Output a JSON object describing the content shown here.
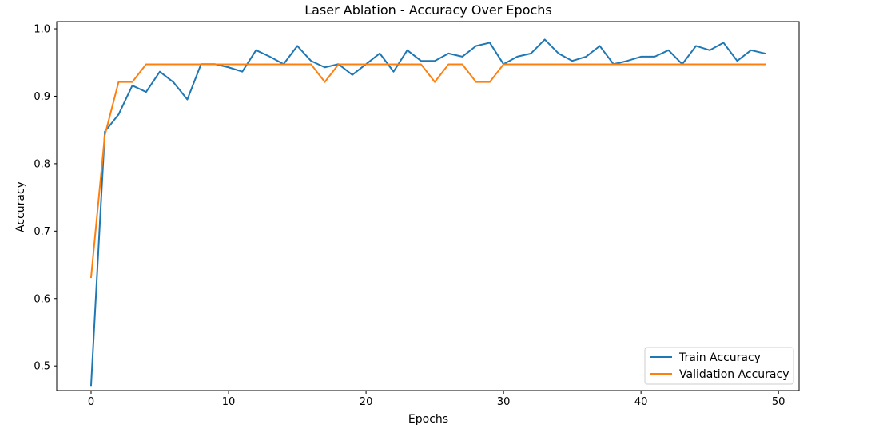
{
  "chart_data": {
    "type": "line",
    "title": "Laser Ablation - Accuracy Over Epochs",
    "xlabel": "Epochs",
    "ylabel": "Accuracy",
    "xlim": [
      -2.5,
      51.5
    ],
    "ylim": [
      0.4635,
      1.0107
    ],
    "xticks": [
      0,
      10,
      20,
      30,
      40,
      50
    ],
    "yticks": [
      0.5,
      0.6,
      0.7,
      0.8,
      0.9,
      1.0
    ],
    "ytick_labels": [
      "0.5",
      "0.6",
      "0.7",
      "0.8",
      "0.9",
      "1.0"
    ],
    "grid": false,
    "legend_position": "lower-right",
    "x": [
      0,
      1,
      2,
      3,
      4,
      5,
      6,
      7,
      8,
      9,
      10,
      11,
      12,
      13,
      14,
      15,
      16,
      17,
      18,
      19,
      20,
      21,
      22,
      23,
      24,
      25,
      26,
      27,
      28,
      29,
      30,
      31,
      32,
      33,
      34,
      35,
      36,
      37,
      38,
      39,
      40,
      41,
      42,
      43,
      44,
      45,
      46,
      47,
      48,
      49
    ],
    "series": [
      {
        "name": "Train Accuracy",
        "color": "#1f77b4",
        "values": [
          0.4715,
          0.8476,
          0.873,
          0.9159,
          0.9063,
          0.9365,
          0.9206,
          0.8952,
          0.9476,
          0.9476,
          0.9429,
          0.9365,
          0.9683,
          0.9587,
          0.9476,
          0.9746,
          0.9524,
          0.9429,
          0.9476,
          0.9317,
          0.9476,
          0.9635,
          0.9365,
          0.9683,
          0.9524,
          0.9524,
          0.9635,
          0.9587,
          0.9746,
          0.9794,
          0.9476,
          0.9587,
          0.9635,
          0.9841,
          0.9635,
          0.9524,
          0.9587,
          0.9746,
          0.9476,
          0.9524,
          0.9587,
          0.9587,
          0.9683,
          0.9476,
          0.9746,
          0.9683,
          0.9794,
          0.9524,
          0.9683,
          0.9635
        ]
      },
      {
        "name": "Validation Accuracy",
        "color": "#ff7f0e",
        "values": [
          0.6316,
          0.8421,
          0.9211,
          0.9211,
          0.9474,
          0.9474,
          0.9474,
          0.9474,
          0.9474,
          0.9474,
          0.9474,
          0.9474,
          0.9474,
          0.9474,
          0.9474,
          0.9474,
          0.9474,
          0.9211,
          0.9474,
          0.9474,
          0.9474,
          0.9474,
          0.9474,
          0.9474,
          0.9474,
          0.9211,
          0.9474,
          0.9474,
          0.9211,
          0.9211,
          0.9474,
          0.9474,
          0.9474,
          0.9474,
          0.9474,
          0.9474,
          0.9474,
          0.9474,
          0.9474,
          0.9474,
          0.9474,
          0.9474,
          0.9474,
          0.9474,
          0.9474,
          0.9474,
          0.9474,
          0.9474,
          0.9474,
          0.9474
        ]
      }
    ]
  }
}
